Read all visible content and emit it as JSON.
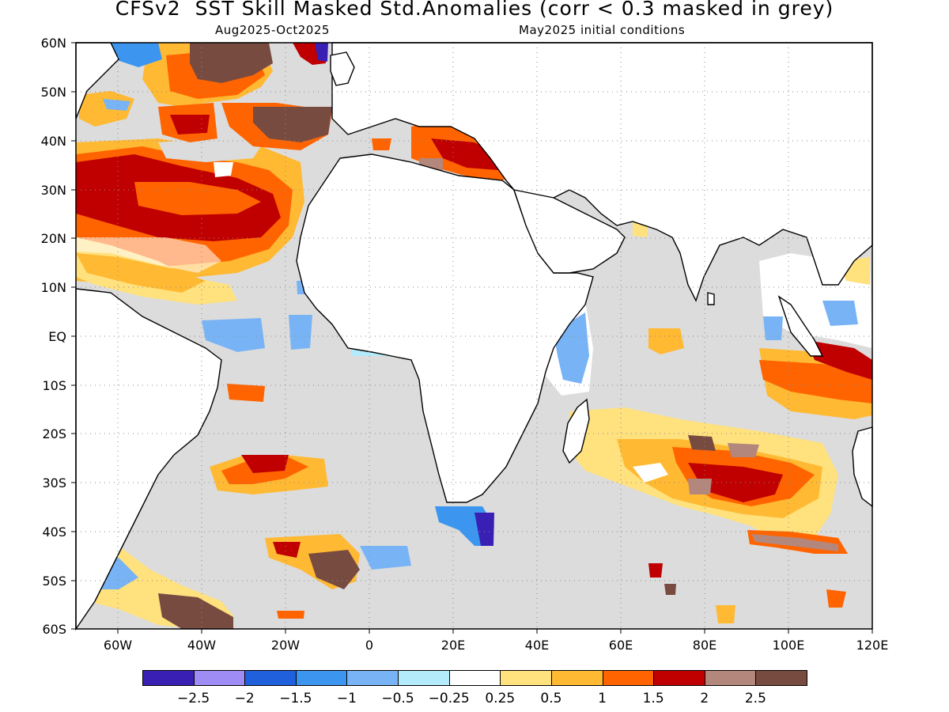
{
  "header": {
    "title": "CFSv2  SST Skill Masked Std.Anomalies (corr < 0.3 masked in grey)",
    "target_period": "Aug2025-Oct2025",
    "initial_conditions": "May2025 initial conditions"
  },
  "map": {
    "lon_range": [
      -70,
      120
    ],
    "lat_range": [
      -60,
      60
    ],
    "lat_labels": [
      "60N",
      "50N",
      "40N",
      "30N",
      "20N",
      "10N",
      "EQ",
      "10S",
      "20S",
      "30S",
      "40S",
      "50S",
      "60S"
    ],
    "lon_labels": [
      "60W",
      "40W",
      "20W",
      "0",
      "20E",
      "40E",
      "60E",
      "80E",
      "100E",
      "120E"
    ],
    "mask_color": "#dcdcdc",
    "grid": true
  },
  "colorbar": {
    "colors": [
      "#3a1fb4",
      "#a08cf5",
      "#2060dc",
      "#3c96f0",
      "#78b4f5",
      "#b4ebfa",
      "#ffffff",
      "#ffe17d",
      "#ffb932",
      "#ff6400",
      "#c00000",
      "#b4877d",
      "#784b41"
    ],
    "labels": [
      "−2.5",
      "−2",
      "−1.5",
      "−1",
      "−0.5",
      "−0.25",
      "0.25",
      "0.5",
      "1",
      "1.5",
      "2",
      "2.5"
    ]
  }
}
